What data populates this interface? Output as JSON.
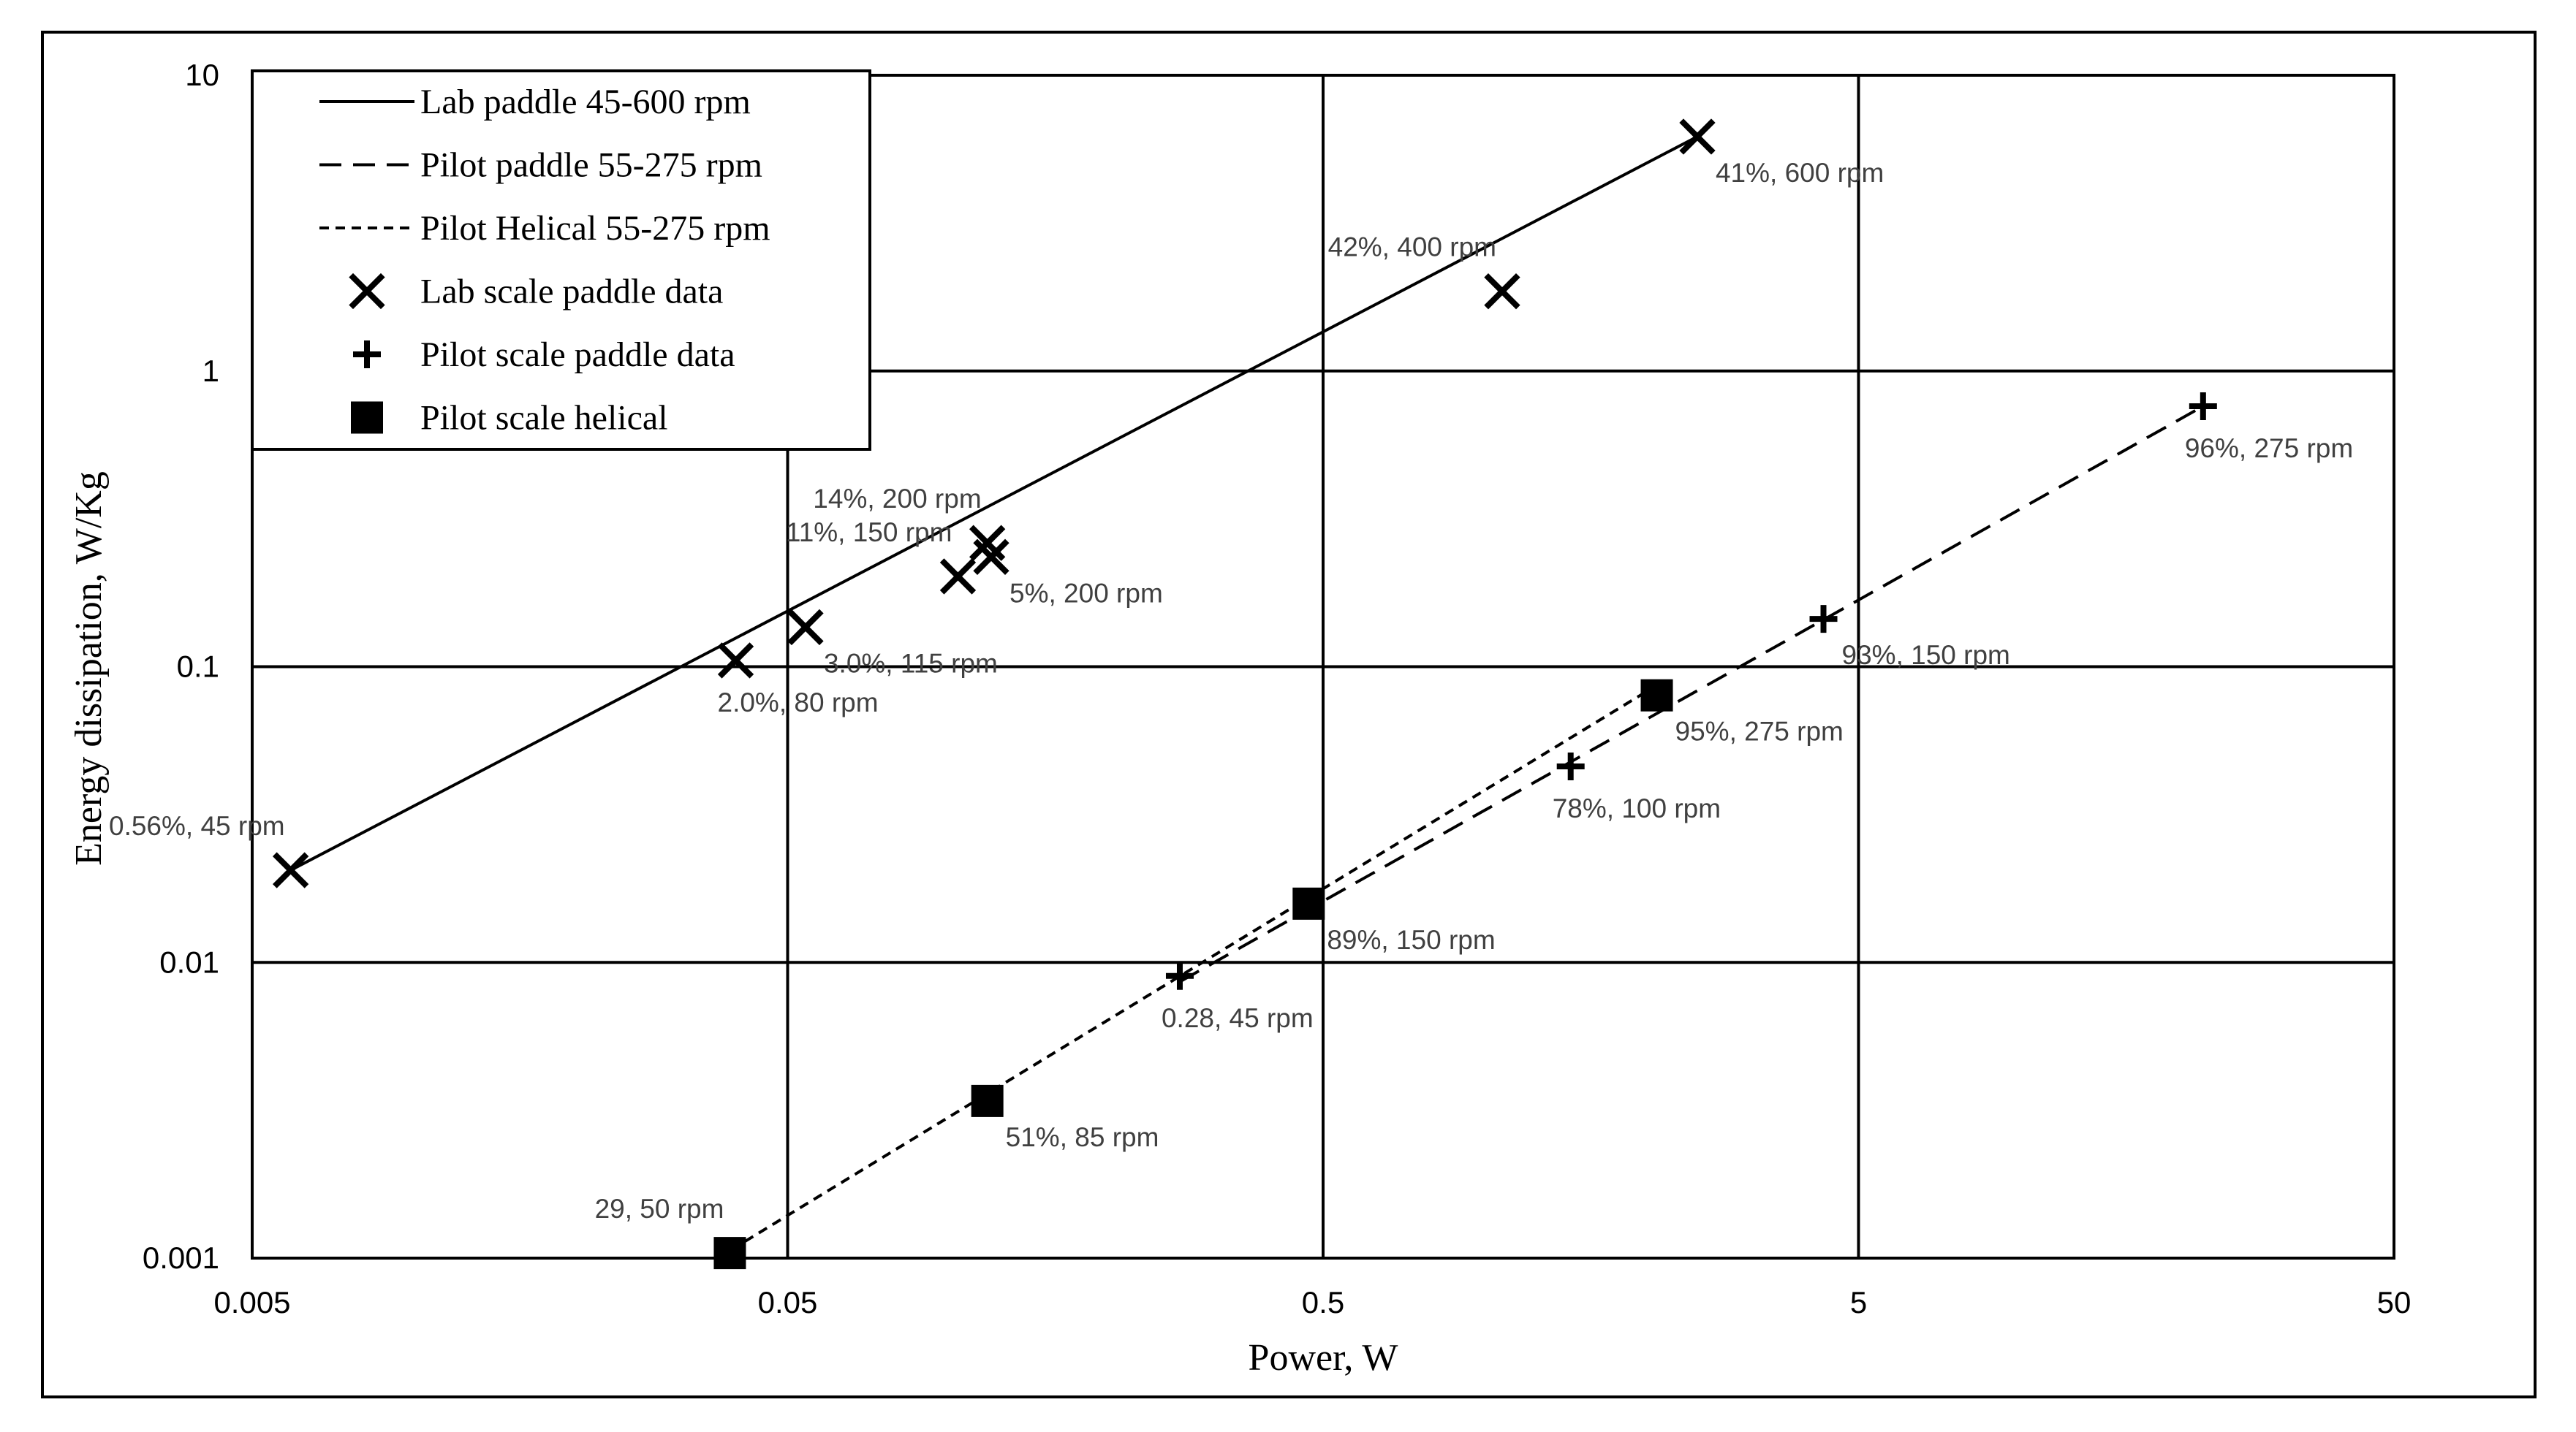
{
  "chart_data": {
    "type": "scatter",
    "title": "",
    "xlabel": "Power, W",
    "ylabel": "Energy dissipation, W/Kg",
    "x_scale": "log",
    "y_scale": "log",
    "xlim": [
      0.005,
      50
    ],
    "ylim": [
      0.001,
      10
    ],
    "x_ticks": [
      0.005,
      0.05,
      0.5,
      5,
      50
    ],
    "x_tick_labels": [
      "0.005",
      "0.05",
      "0.5",
      "5",
      "50"
    ],
    "y_ticks": [
      0.001,
      0.01,
      0.1,
      1,
      10
    ],
    "y_tick_labels": [
      "0.001",
      "0.01",
      "0.1",
      "1",
      "10"
    ],
    "grid": true,
    "legend_position": "top-left",
    "series": [
      {
        "name": "Lab paddle 45-600 rpm",
        "kind": "line",
        "line_style": "solid",
        "points": [
          [
            0.0059,
            0.0205
          ],
          [
            2.5,
            6.2
          ]
        ]
      },
      {
        "name": "Pilot paddle 55-275 rpm",
        "kind": "line",
        "line_style": "dashed",
        "points": [
          [
            0.27,
            0.0086
          ],
          [
            22.0,
            0.76
          ]
        ]
      },
      {
        "name": "Pilot Helical 55-275 rpm",
        "kind": "line",
        "line_style": "dotted",
        "points": [
          [
            0.037,
            0.001
          ],
          [
            2.0,
            0.082
          ]
        ]
      },
      {
        "name": "Lab scale paddle data",
        "kind": "marker",
        "marker": "x",
        "points": [
          {
            "x": 0.0059,
            "y": 0.0205,
            "label": "0.56%, 45 rpm",
            "label_pos": "above-left"
          },
          {
            "x": 0.04,
            "y": 0.105,
            "label": "2.0%, 80 rpm",
            "label_pos": "below"
          },
          {
            "x": 0.054,
            "y": 0.136,
            "label": "3.0%, 115 rpm",
            "label_pos": "below-right"
          },
          {
            "x": 0.104,
            "y": 0.202,
            "label": "11%, 150 rpm",
            "label_pos": "above-left"
          },
          {
            "x": 0.12,
            "y": 0.235,
            "label": "5%, 200 rpm",
            "label_pos": "below-right"
          },
          {
            "x": 0.118,
            "y": 0.262,
            "label": "14%, 200 rpm",
            "label_pos": "above-left"
          },
          {
            "x": 1.08,
            "y": 1.86,
            "label": "42%, 400 rpm",
            "label_pos": "above-left"
          },
          {
            "x": 2.5,
            "y": 6.2,
            "label": "41%, 600 rpm",
            "label_pos": "below-right"
          }
        ]
      },
      {
        "name": "Pilot scale paddle data",
        "kind": "marker",
        "marker": "plus",
        "points": [
          {
            "x": 0.27,
            "y": 0.009,
            "label": "0.28, 45 rpm",
            "label_pos": "below"
          },
          {
            "x": 1.45,
            "y": 0.046,
            "label": "78%, 100 rpm",
            "label_pos": "below"
          },
          {
            "x": 4.3,
            "y": 0.145,
            "label": "93%, 150 rpm",
            "label_pos": "below-right"
          },
          {
            "x": 22.0,
            "y": 0.76,
            "label": "96%, 275 rpm",
            "label_pos": "below"
          }
        ]
      },
      {
        "name": "Pilot scale helical",
        "kind": "marker",
        "marker": "square",
        "points": [
          {
            "x": 0.039,
            "y": 0.00104,
            "label": "29, 50 rpm",
            "label_pos": "above-left"
          },
          {
            "x": 0.118,
            "y": 0.0034,
            "label": "51%, 85 rpm",
            "label_pos": "below-right"
          },
          {
            "x": 0.47,
            "y": 0.0158,
            "label": "89%, 150 rpm",
            "label_pos": "below-right"
          },
          {
            "x": 2.1,
            "y": 0.08,
            "label": "95%, 275 rpm",
            "label_pos": "below-right"
          }
        ]
      }
    ]
  }
}
